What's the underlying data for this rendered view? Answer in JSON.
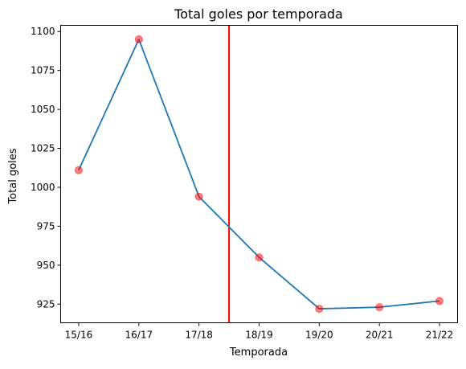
{
  "chart_data": {
    "type": "line",
    "title": "Total goles por temporada",
    "xlabel": "Temporada",
    "ylabel": "Total goles",
    "categories": [
      "15/16",
      "16/17",
      "17/18",
      "18/19",
      "19/20",
      "20/21",
      "21/22"
    ],
    "series": [
      {
        "values": [
          1011,
          1095,
          994,
          955,
          922,
          923,
          927
        ],
        "color": "#1f77b4"
      }
    ],
    "markers": {
      "values": [
        1011,
        1095,
        994,
        955,
        922,
        923,
        927
      ],
      "color": "#ff0000"
    },
    "vertical_line": {
      "x": 2.5,
      "color": "#ff0000"
    },
    "yticks": [
      925,
      950,
      975,
      1000,
      1025,
      1050,
      1075,
      1100
    ],
    "ylim": [
      913,
      1104
    ],
    "xlim": [
      -0.3,
      6.3
    ],
    "grid": false,
    "legend": "none"
  }
}
